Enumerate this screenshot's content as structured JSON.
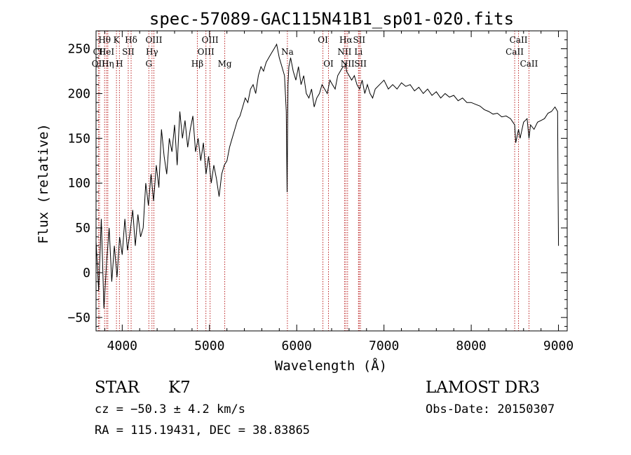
{
  "chart_data": {
    "type": "line",
    "title": "spec-57089-GAC115N41B1_sp01-020.fits",
    "xlabel": "Wavelength (Å)",
    "ylabel": "Flux (relative)",
    "xlim": [
      3700,
      9100
    ],
    "ylim": [
      -65,
      270
    ],
    "xticks": [
      4000,
      5000,
      6000,
      7000,
      8000,
      9000
    ],
    "yticks": [
      -50,
      0,
      50,
      100,
      150,
      200,
      250
    ],
    "grid": false,
    "series": [
      {
        "name": "flux",
        "x": [
          3700,
          3730,
          3760,
          3790,
          3820,
          3850,
          3880,
          3910,
          3940,
          3970,
          4000,
          4030,
          4060,
          4090,
          4120,
          4150,
          4180,
          4210,
          4240,
          4270,
          4300,
          4330,
          4360,
          4390,
          4420,
          4450,
          4480,
          4510,
          4540,
          4570,
          4600,
          4630,
          4660,
          4690,
          4720,
          4750,
          4780,
          4810,
          4840,
          4870,
          4900,
          4930,
          4960,
          4990,
          5020,
          5050,
          5080,
          5110,
          5140,
          5170,
          5200,
          5230,
          5260,
          5290,
          5320,
          5350,
          5380,
          5410,
          5440,
          5470,
          5500,
          5530,
          5560,
          5590,
          5620,
          5650,
          5680,
          5710,
          5740,
          5770,
          5800,
          5830,
          5860,
          5880,
          5890,
          5895,
          5900,
          5910,
          5930,
          5960,
          5990,
          6020,
          6050,
          6080,
          6110,
          6140,
          6170,
          6200,
          6230,
          6260,
          6290,
          6320,
          6350,
          6380,
          6410,
          6440,
          6470,
          6500,
          6530,
          6560,
          6563,
          6570,
          6600,
          6630,
          6660,
          6690,
          6720,
          6750,
          6780,
          6810,
          6840,
          6870,
          6900,
          6950,
          7000,
          7050,
          7100,
          7150,
          7200,
          7250,
          7300,
          7350,
          7400,
          7450,
          7500,
          7550,
          7600,
          7650,
          7700,
          7750,
          7800,
          7850,
          7900,
          7950,
          8000,
          8050,
          8100,
          8150,
          8200,
          8250,
          8300,
          8350,
          8400,
          8450,
          8498,
          8510,
          8542,
          8560,
          8600,
          8640,
          8662,
          8680,
          8720,
          8760,
          8800,
          8840,
          8880,
          8920,
          8960,
          8990,
          8995,
          9000
        ],
        "values": [
          35,
          -20,
          60,
          -40,
          10,
          50,
          -10,
          30,
          -5,
          40,
          20,
          60,
          25,
          45,
          70,
          30,
          65,
          40,
          50,
          100,
          75,
          110,
          80,
          120,
          95,
          160,
          130,
          110,
          150,
          135,
          165,
          120,
          180,
          150,
          170,
          140,
          160,
          175,
          135,
          150,
          125,
          145,
          110,
          130,
          100,
          120,
          105,
          85,
          110,
          120,
          125,
          140,
          150,
          160,
          170,
          175,
          185,
          195,
          190,
          205,
          210,
          200,
          220,
          230,
          225,
          235,
          240,
          245,
          250,
          255,
          240,
          230,
          220,
          180,
          90,
          160,
          210,
          230,
          240,
          225,
          215,
          230,
          210,
          220,
          200,
          195,
          205,
          185,
          195,
          200,
          210,
          205,
          200,
          215,
          210,
          205,
          220,
          225,
          230,
          230,
          235,
          225,
          220,
          215,
          220,
          210,
          205,
          215,
          200,
          210,
          200,
          195,
          205,
          210,
          215,
          205,
          210,
          205,
          212,
          208,
          210,
          203,
          207,
          200,
          205,
          198,
          202,
          195,
          200,
          196,
          198,
          192,
          195,
          190,
          190,
          188,
          186,
          182,
          180,
          177,
          178,
          174,
          175,
          172,
          165,
          145,
          160,
          150,
          168,
          172,
          150,
          165,
          160,
          168,
          170,
          172,
          178,
          180,
          185,
          180,
          100,
          30
        ]
      }
    ],
    "lines": [
      {
        "label": "Hθ",
        "wl": 3798,
        "row": 0
      },
      {
        "label": "CII",
        "wl": 3740,
        "row": 1
      },
      {
        "label": "OII",
        "wl": 3727,
        "row": 2
      },
      {
        "label": "HeI",
        "wl": 3820,
        "row": 1
      },
      {
        "label": "Hη",
        "wl": 3835,
        "row": 2
      },
      {
        "label": "K",
        "wl": 3934,
        "row": 0
      },
      {
        "label": "H",
        "wl": 3968,
        "row": 2
      },
      {
        "label": "SII",
        "wl": 4069,
        "row": 1
      },
      {
        "label": "Hδ",
        "wl": 4102,
        "row": 0
      },
      {
        "label": "OIII",
        "wl": 4363,
        "row": 0
      },
      {
        "label": "Hγ",
        "wl": 4341,
        "row": 1
      },
      {
        "label": "G",
        "wl": 4305,
        "row": 2
      },
      {
        "label": "Hβ",
        "wl": 4861,
        "row": 2
      },
      {
        "label": "OIII",
        "wl": 4959,
        "row": 1
      },
      {
        "label": "OIII",
        "wl": 5007,
        "row": 0
      },
      {
        "label": "Mg",
        "wl": 5175,
        "row": 2
      },
      {
        "label": "Na",
        "wl": 5893,
        "row": 1
      },
      {
        "label": "OI",
        "wl": 6300,
        "row": 0
      },
      {
        "label": "OI",
        "wl": 6364,
        "row": 2
      },
      {
        "label": "Hα",
        "wl": 6563,
        "row": 0
      },
      {
        "label": "NII",
        "wl": 6548,
        "row": 1
      },
      {
        "label": "NII",
        "wl": 6583,
        "row": 2
      },
      {
        "label": "SII",
        "wl": 6716,
        "row": 0
      },
      {
        "label": "Li",
        "wl": 6708,
        "row": 1
      },
      {
        "label": "SII",
        "wl": 6731,
        "row": 2
      },
      {
        "label": "CaII",
        "wl": 8498,
        "row": 1
      },
      {
        "label": "CaII",
        "wl": 8542,
        "row": 0
      },
      {
        "label": "CaII",
        "wl": 8662,
        "row": 2
      }
    ]
  },
  "info": {
    "class": "STAR",
    "subclass": "K7",
    "survey": "LAMOST DR3",
    "cz": "cz = −50.3 ± 4.2 km/s",
    "obs_date": "Obs-Date: 20150307",
    "radec": "RA = 115.19431, DEC =  38.83865"
  }
}
